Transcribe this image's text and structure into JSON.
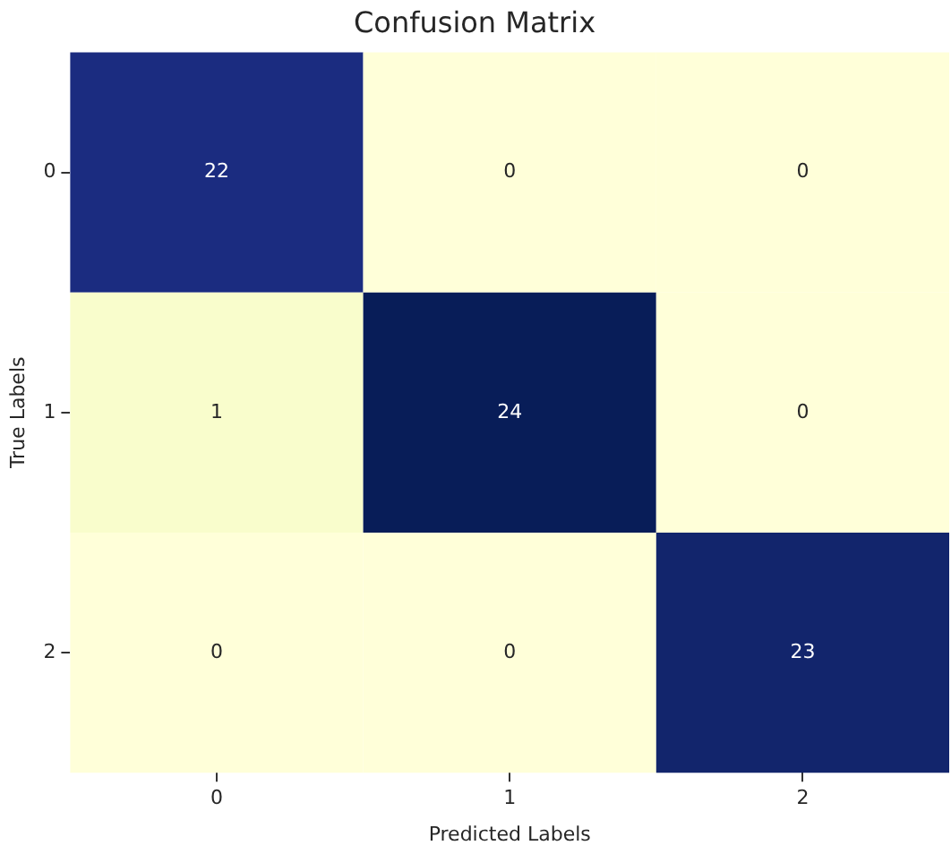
{
  "chart_data": {
    "type": "heatmap",
    "title": "Confusion Matrix",
    "xlabel": "Predicted Labels",
    "ylabel": "True Labels",
    "categories": [
      "0",
      "1",
      "2"
    ],
    "y_categories": [
      "0",
      "1",
      "2"
    ],
    "cells": [
      [
        22,
        0,
        0
      ],
      [
        1,
        24,
        0
      ],
      [
        0,
        0,
        23
      ]
    ],
    "data_labels": true
  }
}
